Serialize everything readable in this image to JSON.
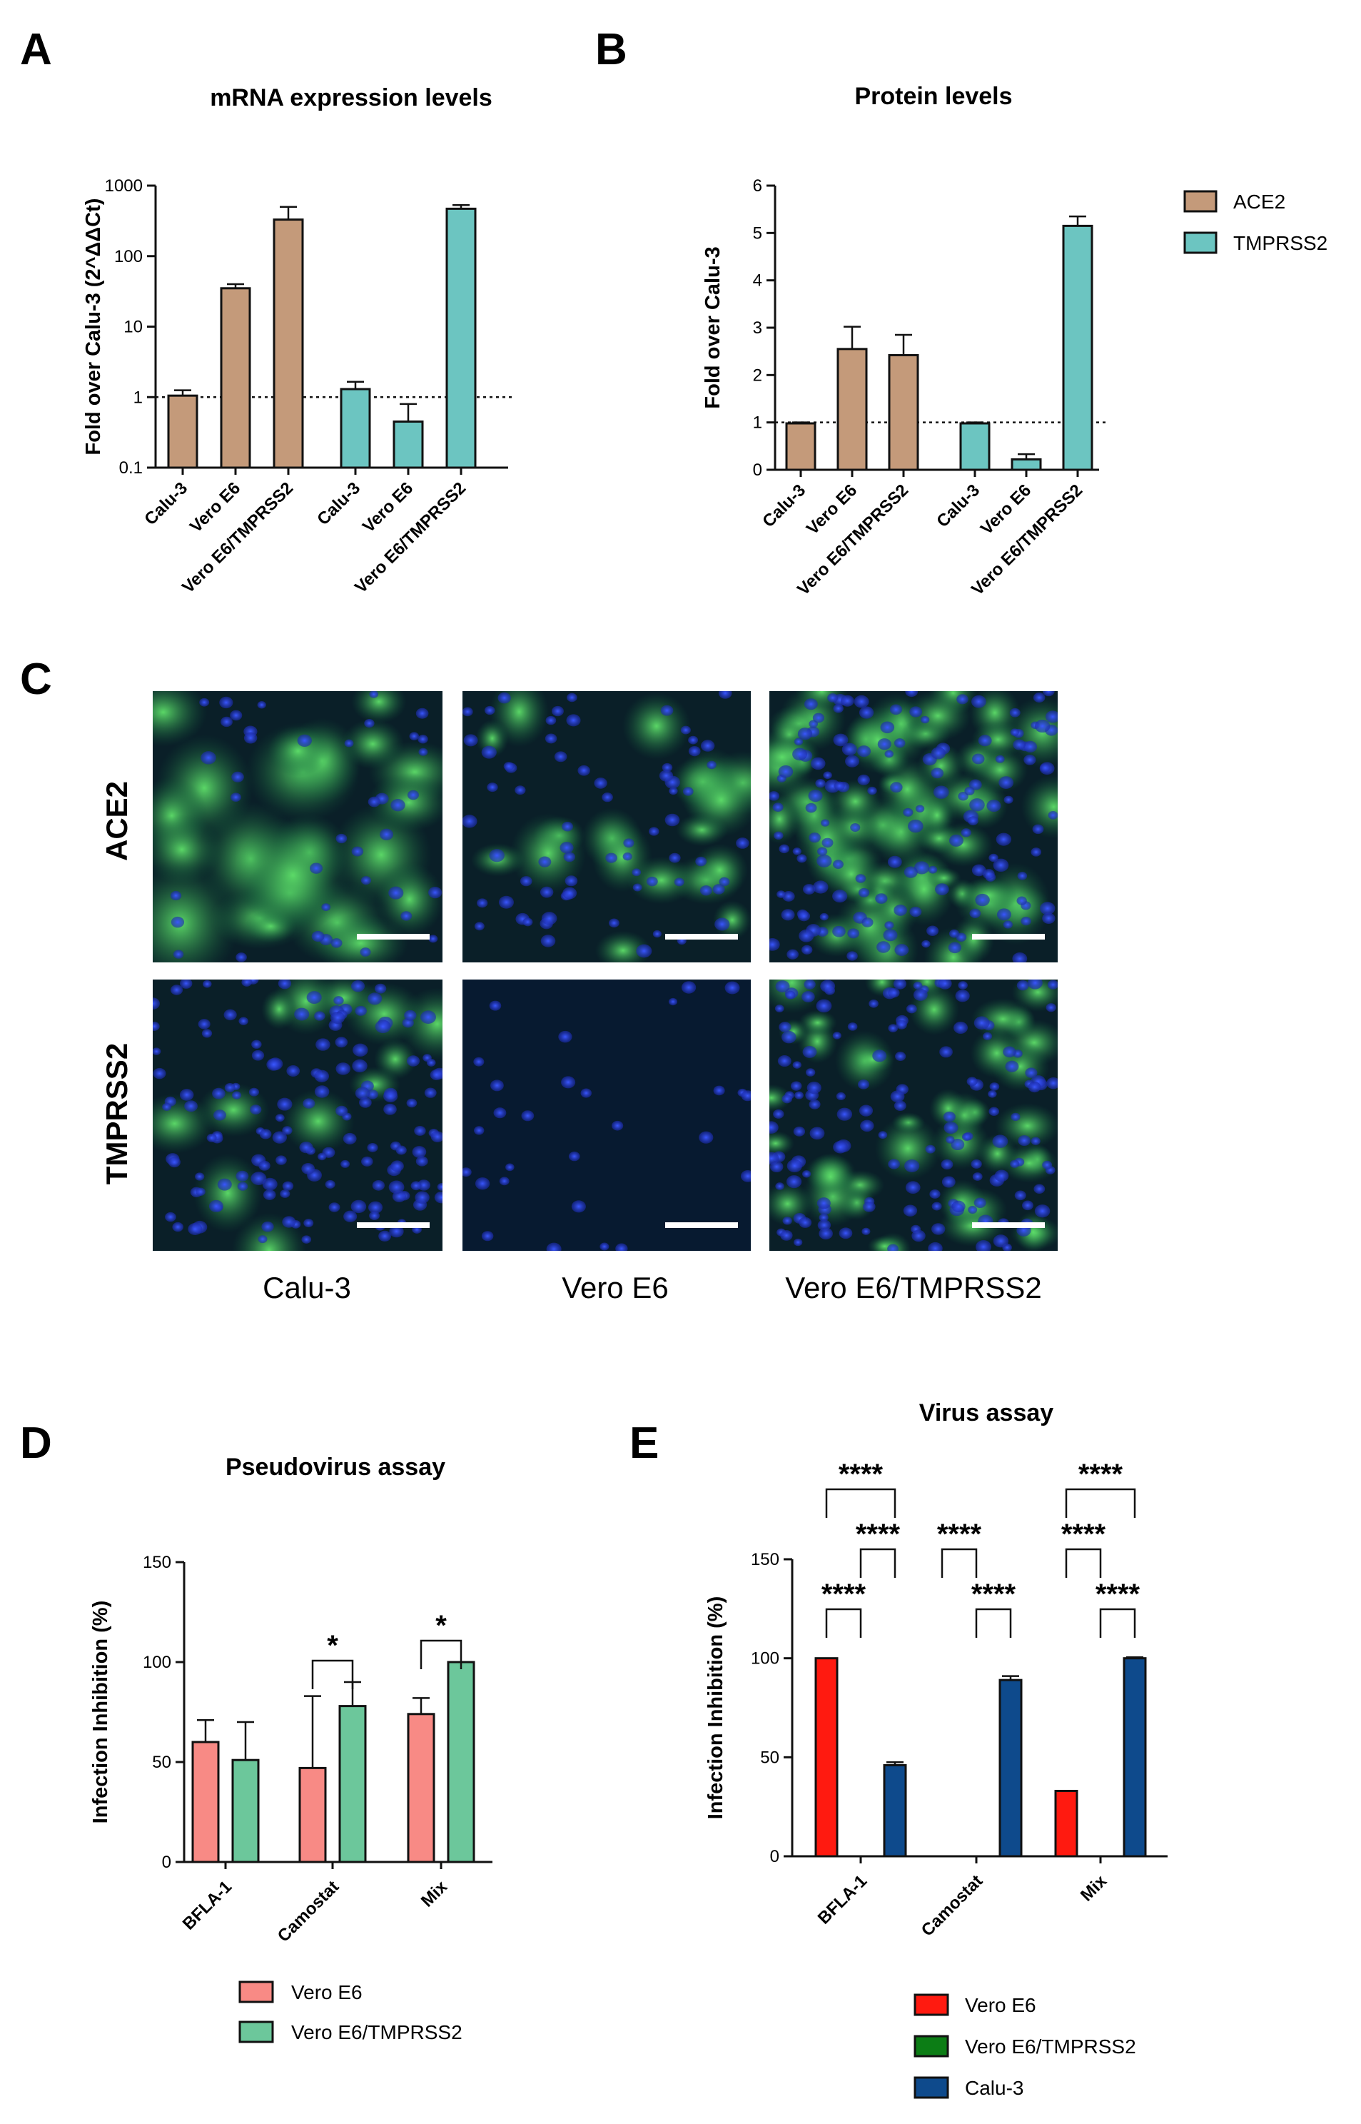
{
  "panels": {
    "A": {
      "letter": "A",
      "chart_data": {
        "type": "bar",
        "title": "mRNA expression levels",
        "ylabel": "Fold over Calu-3 (2^ΔΔCt)",
        "yscale": "log",
        "ylim": [
          0.1,
          1000
        ],
        "yticks": [
          "0.1",
          "1",
          "10",
          "100",
          "1000"
        ],
        "reference_line": 1,
        "series": [
          {
            "name": "ACE2",
            "categories": [
              "Calu-3",
              "Vero E6",
              "Vero E6/TMPRSS2"
            ],
            "values": [
              1.05,
              35,
              330
            ],
            "errors_upper": [
              1.25,
              40,
              500
            ]
          },
          {
            "name": "TMPRSS2",
            "categories": [
              "Calu-3",
              "Vero E6",
              "Vero E6/TMPRSS2"
            ],
            "values": [
              1.3,
              0.45,
              470
            ],
            "errors_upper": [
              1.65,
              0.8,
              530
            ]
          }
        ]
      }
    },
    "B": {
      "letter": "B",
      "chart_data": {
        "type": "bar",
        "title": "Protein levels",
        "ylabel": "Fold over Calu-3",
        "ylim": [
          0,
          6
        ],
        "yticks": [
          "0",
          "1",
          "2",
          "3",
          "4",
          "5",
          "6"
        ],
        "reference_line": 1,
        "series": [
          {
            "name": "ACE2",
            "categories": [
              "Calu-3",
              "Vero E6",
              "Vero E6/TMPRSS2"
            ],
            "values": [
              0.98,
              2.55,
              2.42
            ],
            "errors_upper": [
              1.0,
              3.02,
              2.85
            ]
          },
          {
            "name": "TMPRSS2",
            "categories": [
              "Calu-3",
              "Vero E6",
              "Vero E6/TMPRSS2"
            ],
            "values": [
              0.98,
              0.22,
              5.15
            ],
            "errors_upper": [
              1.0,
              0.33,
              5.35
            ]
          }
        ]
      }
    },
    "legend_AB": {
      "items": [
        {
          "label": "ACE2",
          "color": "#c49a7a"
        },
        {
          "label": "TMPRSS2",
          "color": "#6cc5c1"
        }
      ]
    },
    "C": {
      "letter": "C",
      "row_labels": [
        "ACE2",
        "TMPRSS2"
      ],
      "col_labels": [
        "Calu-3",
        "Vero E6",
        "Vero E6/TMPRSS2"
      ]
    },
    "D": {
      "letter": "D",
      "chart_data": {
        "type": "bar",
        "title": "Pseudovirus assay",
        "ylabel": "Infection Inhibition (%)",
        "ylim": [
          0,
          150
        ],
        "yticks": [
          "0",
          "50",
          "100",
          "150"
        ],
        "categories": [
          "BFLA-1",
          "Camostat",
          "Mix"
        ],
        "series": [
          {
            "name": "Vero E6",
            "color": "#f88a85",
            "values": [
              60,
              47,
              74
            ],
            "errors_upper": [
              71,
              83,
              82
            ]
          },
          {
            "name": "Vero E6/TMPRSS2",
            "color": "#6cc79b",
            "values": [
              51,
              78,
              100
            ],
            "errors_upper": [
              70,
              90,
              100
            ]
          }
        ],
        "significance": [
          {
            "label": "*",
            "group": 1,
            "from": 0,
            "to": 1
          },
          {
            "label": "*",
            "group": 2,
            "from": 0,
            "to": 1
          }
        ]
      }
    },
    "E": {
      "letter": "E",
      "chart_data": {
        "type": "bar",
        "title": "Virus assay",
        "ylabel": "Infection Inhibition (%)",
        "ylim": [
          0,
          150
        ],
        "yticks": [
          "0",
          "50",
          "100",
          "150"
        ],
        "categories": [
          "BFLA-1",
          "Camostat",
          "Mix"
        ],
        "series": [
          {
            "name": "Vero E6",
            "color": "#ff1a10",
            "values": [
              100,
              0,
              33
            ],
            "errors_upper": [
              100,
              0,
              33
            ]
          },
          {
            "name": "Vero E6/TMPRSS2",
            "color": "#0c7d15",
            "values": [
              0,
              0,
              0
            ],
            "errors_upper": [
              0,
              0,
              0
            ]
          },
          {
            "name": "Calu-3",
            "color": "#0e4a8c",
            "values": [
              46,
              89,
              100
            ],
            "errors_upper": [
              47.5,
              91,
              100.5
            ]
          }
        ],
        "significance": [
          {
            "label": "****",
            "group": 0,
            "from": 0,
            "to": 2,
            "level": 3
          },
          {
            "label": "****",
            "group": 0,
            "from": 1,
            "to": 2,
            "level": 2
          },
          {
            "label": "****",
            "group": 0,
            "from": 0,
            "to": 1,
            "level": 1
          },
          {
            "label": "****",
            "group": 1,
            "from": 0,
            "to": 1,
            "level": 2
          },
          {
            "label": "****",
            "group": 1,
            "from": 1,
            "to": 2,
            "level": 1
          },
          {
            "label": "****",
            "group": 2,
            "from": 0,
            "to": 2,
            "level": 3
          },
          {
            "label": "****",
            "group": 2,
            "from": 0,
            "to": 1,
            "level": 2
          },
          {
            "label": "****",
            "group": 2,
            "from": 1,
            "to": 2,
            "level": 1
          }
        ]
      }
    }
  }
}
